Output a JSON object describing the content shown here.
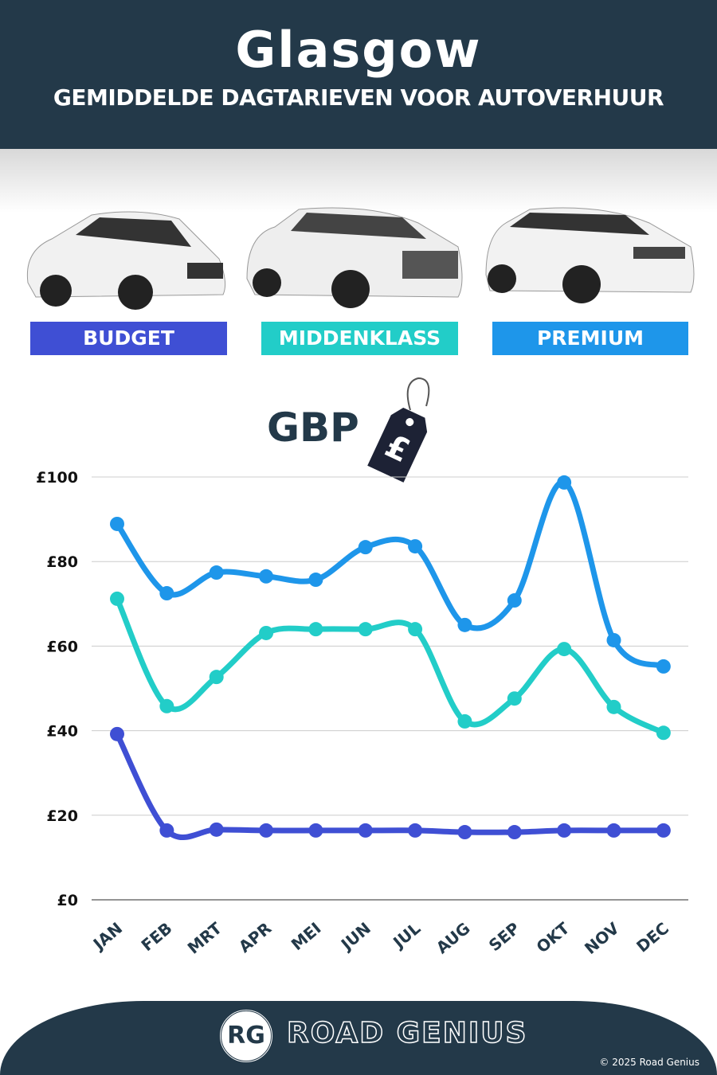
{
  "header": {
    "title": "Glasgow",
    "subtitle": "GEMIDDELDE DAGTARIEVEN VOOR AUTOVERHUUR"
  },
  "categories": [
    {
      "label": "BUDGET",
      "color": "#3f4fd4"
    },
    {
      "label": "MIDDENKLASS",
      "color": "#22cdc8"
    },
    {
      "label": "PREMIUM",
      "color": "#1e96ea"
    }
  ],
  "currency": {
    "label": "GBP",
    "icon": "price-tag-pound-icon",
    "symbol": "£"
  },
  "chart_data": {
    "type": "line",
    "categories": [
      "JAN",
      "FEB",
      "MRT",
      "APR",
      "MEI",
      "JUN",
      "JUL",
      "AUG",
      "SEP",
      "OKT",
      "NOV",
      "DEC"
    ],
    "ylim": [
      0,
      100
    ],
    "yticks": [
      0,
      20,
      40,
      60,
      80,
      100
    ],
    "ytick_labels": [
      "£0",
      "£20",
      "£40",
      "£60",
      "£80",
      "£100"
    ],
    "grid": true,
    "series": [
      {
        "name": "PREMIUM",
        "color": "#1e96ea",
        "values": [
          88.9,
          72.5,
          77.4,
          76.5,
          75.7,
          83.4,
          83.6,
          65.0,
          70.8,
          98.7,
          61.4,
          55.2
        ]
      },
      {
        "name": "MIDDENKLASS",
        "color": "#22cdc8",
        "values": [
          71.2,
          45.8,
          52.7,
          63.1,
          64.0,
          64.0,
          64.0,
          42.2,
          47.6,
          59.3,
          45.6,
          39.5
        ]
      },
      {
        "name": "BUDGET",
        "color": "#3f4fd4",
        "values": [
          39.2,
          16.4,
          16.6,
          16.4,
          16.4,
          16.4,
          16.4,
          16.0,
          16.0,
          16.4,
          16.4,
          16.4
        ]
      }
    ]
  },
  "footer": {
    "logo_initials": "RG",
    "brand": "ROAD GENIUS",
    "copyright": "© 2025 Road Genius"
  }
}
